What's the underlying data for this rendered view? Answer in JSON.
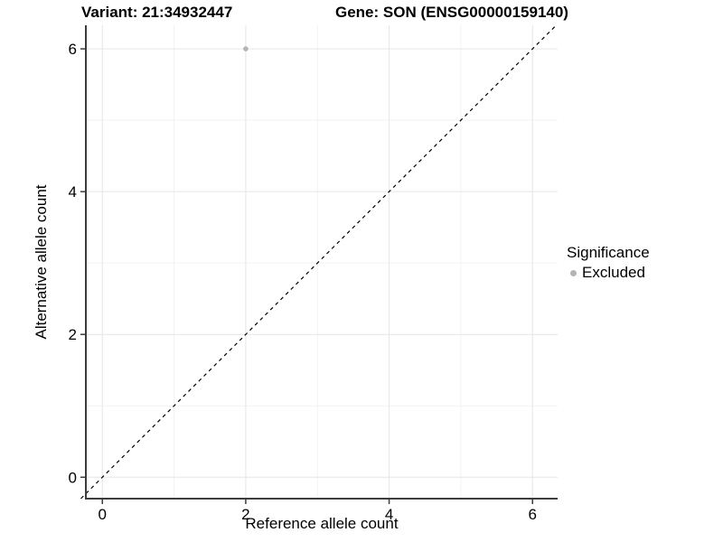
{
  "titles": {
    "variant": "Variant: 21:34932447",
    "gene": "Gene: SON (ENSG00000159140)"
  },
  "legend": {
    "title": "Significance",
    "entries": [
      {
        "label": "Excluded",
        "color": "#b4b4b4"
      }
    ],
    "position": "right"
  },
  "colors": {
    "background": "#ffffff",
    "point": "#b4b4b4",
    "grid_major": "#e6e6e6",
    "grid_minor": "#f2f2f2",
    "axis_line": "#3c3c3c",
    "tick_label": "#000000",
    "identity_line": "#000000"
  },
  "chart_data": {
    "type": "scatter",
    "title": "Variant: 21:34932447  /  Gene: SON (ENSG00000159140)",
    "xlabel": "Reference allele count",
    "ylabel": "Alternative allele count",
    "xlim": [
      -0.23,
      6.35
    ],
    "ylim": [
      -0.3,
      6.33
    ],
    "x_ticks": [
      0,
      2,
      4,
      6
    ],
    "y_ticks": [
      0,
      2,
      4,
      6
    ],
    "x_minor_ticks": [
      1,
      3,
      5
    ],
    "y_minor_ticks": [
      1,
      3,
      5
    ],
    "grid": true,
    "points": [
      {
        "x": 2,
        "y": 6,
        "series": "Excluded"
      }
    ],
    "abline": {
      "slope": 1,
      "intercept": 0,
      "linetype": "dashed"
    },
    "legend_position": "right"
  }
}
